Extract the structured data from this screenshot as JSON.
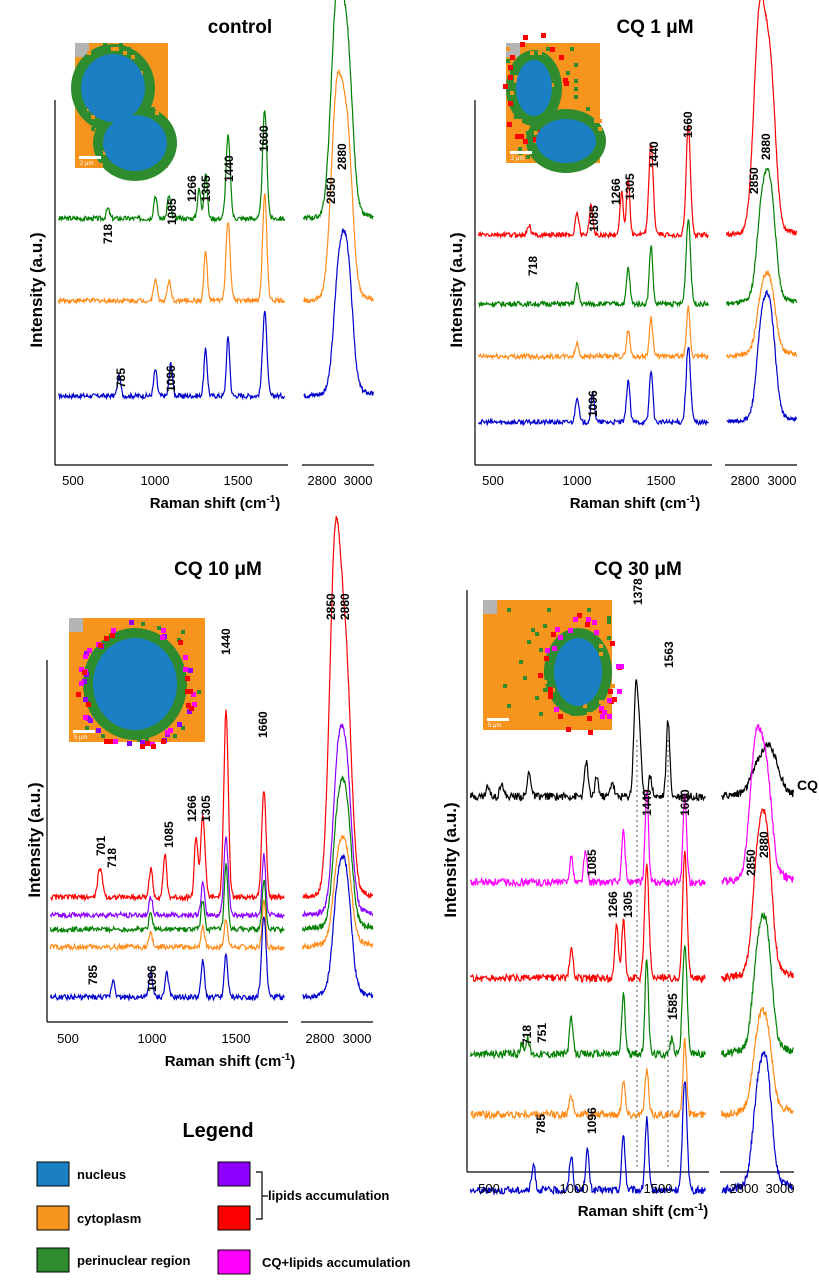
{
  "figure": {
    "ylabel": "Intensity (a.u.)",
    "xlabel": "Raman shift (cm",
    "xlabel_sup": "-1",
    "xlabel_tail": ")",
    "ticks_low": [
      "500",
      "1000",
      "1500"
    ],
    "ticks_high": [
      "2800",
      "3000"
    ]
  },
  "series_colors": {
    "lipids_violet": "#8b00ff",
    "lipids_red": "#ff0000",
    "perinuclear": "#008000",
    "cytoplasm": "#ff8c1a",
    "nucleus": "#0000cc",
    "cq_lipids": "#ff00ff",
    "cq_reference": "#000000"
  },
  "map_colors": {
    "nucleus": "#1b7fc4",
    "cytoplasm": "#f7941d",
    "perinuclear": "#2e8b2e",
    "lipids_violet": "#8b00ff",
    "lipids_red": "#ff0000",
    "cq_lipids": "#ff00ff",
    "background": "#b4b4b4"
  },
  "scalebars": [
    "2 μm",
    "2 μm",
    "5 μm",
    "5 μm"
  ],
  "legend": {
    "title": "Legend",
    "nucleus": "nucleus",
    "cytoplasm": "cytoplasm",
    "perinuclear": "perinuclear region",
    "lipids": "lipids accumulation",
    "cq_lipids": "CQ+lipids accumulation"
  },
  "chart_data": [
    {
      "type": "line",
      "title": "control",
      "xlabel": "Raman shift (cm-1)",
      "ylabel": "Intensity (a.u.)",
      "x_ticks": [
        500,
        1000,
        1500,
        2800,
        3000
      ],
      "xlim_low": [
        400,
        1800
      ],
      "xlim_high": [
        2650,
        3100
      ],
      "series": [
        {
          "color": "#008000",
          "baseline": 0.72,
          "peaks": [
            [
              718,
              0.03
            ],
            [
              1003,
              0.07
            ],
            [
              1085,
              0.07
            ],
            [
              1266,
              0.09
            ],
            [
              1305,
              0.14
            ],
            [
              1440,
              0.25
            ],
            [
              1660,
              0.33
            ],
            [
              2850,
              0.3
            ],
            [
              2880,
              0.42
            ],
            [
              2935,
              0.46
            ]
          ]
        },
        {
          "color": "#ff8c1a",
          "baseline": 0.47,
          "peaks": [
            [
              1003,
              0.07
            ],
            [
              1085,
              0.06
            ],
            [
              1305,
              0.15
            ],
            [
              1440,
              0.24
            ],
            [
              1660,
              0.32
            ],
            [
              2850,
              0.28
            ],
            [
              2880,
              0.4
            ],
            [
              2935,
              0.44
            ]
          ]
        },
        {
          "color": "#0000cc",
          "baseline": 0.18,
          "peaks": [
            [
              785,
              0.06
            ],
            [
              1003,
              0.08
            ],
            [
              1096,
              0.1
            ],
            [
              1305,
              0.14
            ],
            [
              1440,
              0.18
            ],
            [
              1660,
              0.26
            ],
            [
              2880,
              0.34
            ],
            [
              2935,
              0.36
            ]
          ]
        }
      ],
      "annotations": [
        "718",
        "1085",
        "1266",
        "1305",
        "1440",
        "1660",
        "2850",
        "2880",
        "785",
        "1096"
      ]
    },
    {
      "type": "line",
      "title": "CQ 1 μM",
      "xlabel": "Raman shift (cm-1)",
      "ylabel": "Intensity (a.u.)",
      "x_ticks": [
        500,
        1000,
        1500,
        2800,
        3000
      ],
      "xlim_low": [
        400,
        1800
      ],
      "xlim_high": [
        2650,
        3100
      ],
      "series": [
        {
          "color": "#ff0000",
          "baseline": 0.67,
          "peaks": [
            [
              718,
              0.03
            ],
            [
              1003,
              0.07
            ],
            [
              1085,
              0.09
            ],
            [
              1266,
              0.13
            ],
            [
              1305,
              0.17
            ],
            [
              1440,
              0.28
            ],
            [
              1660,
              0.33
            ],
            [
              2850,
              0.33
            ],
            [
              2880,
              0.4
            ],
            [
              2935,
              0.44
            ]
          ]
        },
        {
          "color": "#008000",
          "baseline": 0.46,
          "peaks": [
            [
              1003,
              0.06
            ],
            [
              1305,
              0.11
            ],
            [
              1440,
              0.18
            ],
            [
              1660,
              0.26
            ],
            [
              2880,
              0.26
            ],
            [
              2935,
              0.3
            ]
          ]
        },
        {
          "color": "#ff8c1a",
          "baseline": 0.3,
          "peaks": [
            [
              1003,
              0.04
            ],
            [
              1305,
              0.08
            ],
            [
              1440,
              0.12
            ],
            [
              1660,
              0.15
            ],
            [
              2880,
              0.16
            ],
            [
              2935,
              0.18
            ]
          ]
        },
        {
          "color": "#0000cc",
          "baseline": 0.1,
          "peaks": [
            [
              1003,
              0.08
            ],
            [
              1096,
              0.09
            ],
            [
              1305,
              0.13
            ],
            [
              1440,
              0.16
            ],
            [
              1660,
              0.23
            ],
            [
              2880,
              0.26
            ],
            [
              2935,
              0.28
            ]
          ]
        }
      ],
      "annotations": [
        "718",
        "1085",
        "1266",
        "1305",
        "1440",
        "1660",
        "2850",
        "2880",
        "1096"
      ]
    },
    {
      "type": "line",
      "title": "CQ 10 μM",
      "xlabel": "Raman shift (cm-1)",
      "ylabel": "Intensity (a.u.)",
      "x_ticks": [
        500,
        1000,
        1500,
        2800,
        3000
      ],
      "xlim_low": [
        400,
        1800
      ],
      "xlim_high": [
        2650,
        3100
      ],
      "series": [
        {
          "color": "#ff0000",
          "baseline": 0.33,
          "peaks": [
            [
              701,
              0.06
            ],
            [
              718,
              0.05
            ],
            [
              1003,
              0.08
            ],
            [
              1085,
              0.12
            ],
            [
              1266,
              0.17
            ],
            [
              1305,
              0.23
            ],
            [
              1440,
              0.53
            ],
            [
              1660,
              0.3
            ],
            [
              2850,
              0.53
            ],
            [
              2880,
              0.57
            ],
            [
              2935,
              0.55
            ]
          ]
        },
        {
          "color": "#8b00ff",
          "baseline": 0.28,
          "peaks": [
            [
              1003,
              0.05
            ],
            [
              1305,
              0.09
            ],
            [
              1440,
              0.22
            ],
            [
              1660,
              0.17
            ],
            [
              2880,
              0.38
            ],
            [
              2935,
              0.36
            ]
          ]
        },
        {
          "color": "#008000",
          "baseline": 0.24,
          "peaks": [
            [
              1003,
              0.05
            ],
            [
              1305,
              0.08
            ],
            [
              1440,
              0.18
            ],
            [
              1660,
              0.14
            ],
            [
              2880,
              0.28
            ],
            [
              2935,
              0.3
            ]
          ]
        },
        {
          "color": "#ff8c1a",
          "baseline": 0.19,
          "peaks": [
            [
              1003,
              0.04
            ],
            [
              1305,
              0.06
            ],
            [
              1440,
              0.08
            ],
            [
              1660,
              0.13
            ],
            [
              2880,
              0.2
            ],
            [
              2935,
              0.22
            ]
          ]
        },
        {
          "color": "#0000cc",
          "baseline": 0.05,
          "peaks": [
            [
              785,
              0.05
            ],
            [
              1003,
              0.07
            ],
            [
              1096,
              0.07
            ],
            [
              1305,
              0.1
            ],
            [
              1440,
              0.12
            ],
            [
              1660,
              0.23
            ],
            [
              2880,
              0.26
            ],
            [
              2935,
              0.28
            ]
          ]
        }
      ],
      "annotations": [
        "701",
        "718",
        "1085",
        "1266",
        "1305",
        "1440",
        "1660",
        "2850",
        "2880",
        "785",
        "1096"
      ]
    },
    {
      "type": "line",
      "title": "CQ 30 μM",
      "xlabel": "Raman shift (cm-1)",
      "ylabel": "Intensity (a.u.)",
      "x_ticks": [
        500,
        1000,
        1500,
        2800,
        3000
      ],
      "xlim_low": [
        400,
        1800
      ],
      "xlim_high": [
        2650,
        3100
      ],
      "reference_label": "CQ",
      "series": [
        {
          "color": "#000000",
          "baseline": 0.74,
          "peaks": [
            [
              520,
              0.02
            ],
            [
              600,
              0.03
            ],
            [
              760,
              0.05
            ],
            [
              1090,
              0.07
            ],
            [
              1150,
              0.04
            ],
            [
              1240,
              0.03
            ],
            [
              1378,
              0.22
            ],
            [
              1400,
              0.09
            ],
            [
              1460,
              0.04
            ],
            [
              1563,
              0.15
            ],
            [
              2870,
              0.04
            ],
            [
              2935,
              0.07
            ],
            [
              2990,
              0.04
            ]
          ]
        },
        {
          "color": "#ff00ff",
          "baseline": 0.57,
          "peaks": [
            [
              1003,
              0.05
            ],
            [
              1085,
              0.06
            ],
            [
              1305,
              0.1
            ],
            [
              1440,
              0.18
            ],
            [
              1660,
              0.18
            ],
            [
              2850,
              0.11
            ],
            [
              2880,
              0.18
            ],
            [
              2935,
              0.18
            ]
          ]
        },
        {
          "color": "#ff0000",
          "baseline": 0.38,
          "peaks": [
            [
              1003,
              0.06
            ],
            [
              1266,
              0.11
            ],
            [
              1305,
              0.12
            ],
            [
              1440,
              0.22
            ],
            [
              1660,
              0.25
            ],
            [
              2880,
              0.21
            ],
            [
              2935,
              0.24
            ]
          ]
        },
        {
          "color": "#008000",
          "baseline": 0.23,
          "peaks": [
            [
              718,
              0.02
            ],
            [
              751,
              0.03
            ],
            [
              1003,
              0.07
            ],
            [
              1305,
              0.12
            ],
            [
              1440,
              0.19
            ],
            [
              1585,
              0.03
            ],
            [
              1660,
              0.22
            ],
            [
              2880,
              0.17
            ],
            [
              2935,
              0.2
            ]
          ]
        },
        {
          "color": "#ff8c1a",
          "baseline": 0.11,
          "peaks": [
            [
              1003,
              0.04
            ],
            [
              1305,
              0.07
            ],
            [
              1440,
              0.09
            ],
            [
              1660,
              0.15
            ],
            [
              2880,
              0.13
            ],
            [
              2935,
              0.14
            ]
          ]
        },
        {
          "color": "#0000cc",
          "baseline": -0.04,
          "peaks": [
            [
              785,
              0.05
            ],
            [
              1003,
              0.07
            ],
            [
              1096,
              0.08
            ],
            [
              1305,
              0.11
            ],
            [
              1440,
              0.14
            ],
            [
              1660,
              0.22
            ],
            [
              2880,
              0.16
            ],
            [
              2935,
              0.2
            ]
          ]
        }
      ],
      "guide_lines": [
        1378,
        1563
      ],
      "annotations": [
        "1378",
        "1563",
        "1440",
        "1660",
        "1085",
        "2850",
        "2880",
        "1266",
        "1305",
        "718",
        "751",
        "1585",
        "785",
        "1096"
      ]
    }
  ]
}
